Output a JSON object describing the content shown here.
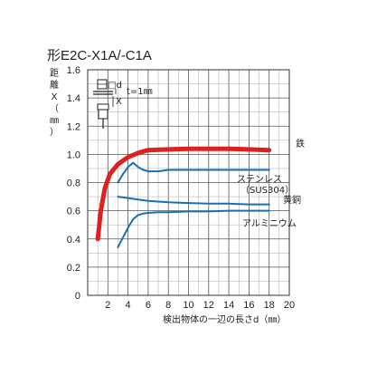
{
  "title": "形E2C-X1A/-C1A",
  "chart_data": {
    "type": "line",
    "xlabel": "検出物体の一辺の長さd（㎜）",
    "ylabel_chars": [
      "距",
      "離",
      "X",
      "（",
      "㎜",
      "）"
    ],
    "xlim": [
      0,
      20
    ],
    "ylim": [
      0,
      1.6
    ],
    "xticks": [
      "2",
      "4",
      "6",
      "8",
      "10",
      "12",
      "14",
      "16",
      "18",
      "20"
    ],
    "yticks": [
      "0",
      "0.2",
      "0.4",
      "0.6",
      "0.8",
      "1.0",
      "1.2",
      "1.4",
      "1.6"
    ],
    "grid": true,
    "inset_label": "t=1㎜",
    "inset_symbols": [
      "□d",
      "X"
    ],
    "series": [
      {
        "name": "鉄",
        "color": "#e02020",
        "x": [
          1,
          1.3,
          1.7,
          2.2,
          3,
          4,
          5,
          6,
          8,
          10,
          12,
          14,
          16,
          18
        ],
        "y": [
          0.4,
          0.6,
          0.76,
          0.86,
          0.93,
          0.98,
          1.01,
          1.03,
          1.035,
          1.04,
          1.04,
          1.04,
          1.035,
          1.03
        ]
      },
      {
        "name": "ステンレス（SUS304）",
        "color": "#1a6fb0",
        "x": [
          3,
          3.5,
          4,
          4.5,
          5,
          5.5,
          6,
          7,
          8,
          10,
          12,
          14,
          16,
          18
        ],
        "y": [
          0.8,
          0.86,
          0.91,
          0.94,
          0.91,
          0.89,
          0.88,
          0.88,
          0.89,
          0.89,
          0.89,
          0.89,
          0.89,
          0.89
        ]
      },
      {
        "name": "黄銅",
        "color": "#1a6fb0",
        "x": [
          3,
          4,
          5,
          6,
          8,
          10,
          12,
          14,
          16,
          18
        ],
        "y": [
          0.7,
          0.69,
          0.68,
          0.67,
          0.66,
          0.655,
          0.65,
          0.65,
          0.645,
          0.645
        ]
      },
      {
        "name": "アルミニウム",
        "color": "#1a6fb0",
        "x": [
          3,
          3.5,
          4,
          4.5,
          5,
          5.5,
          6,
          7,
          8,
          10,
          12,
          14,
          16,
          18
        ],
        "y": [
          0.34,
          0.41,
          0.48,
          0.54,
          0.57,
          0.58,
          0.585,
          0.59,
          0.59,
          0.595,
          0.595,
          0.6,
          0.6,
          0.6
        ]
      }
    ]
  }
}
